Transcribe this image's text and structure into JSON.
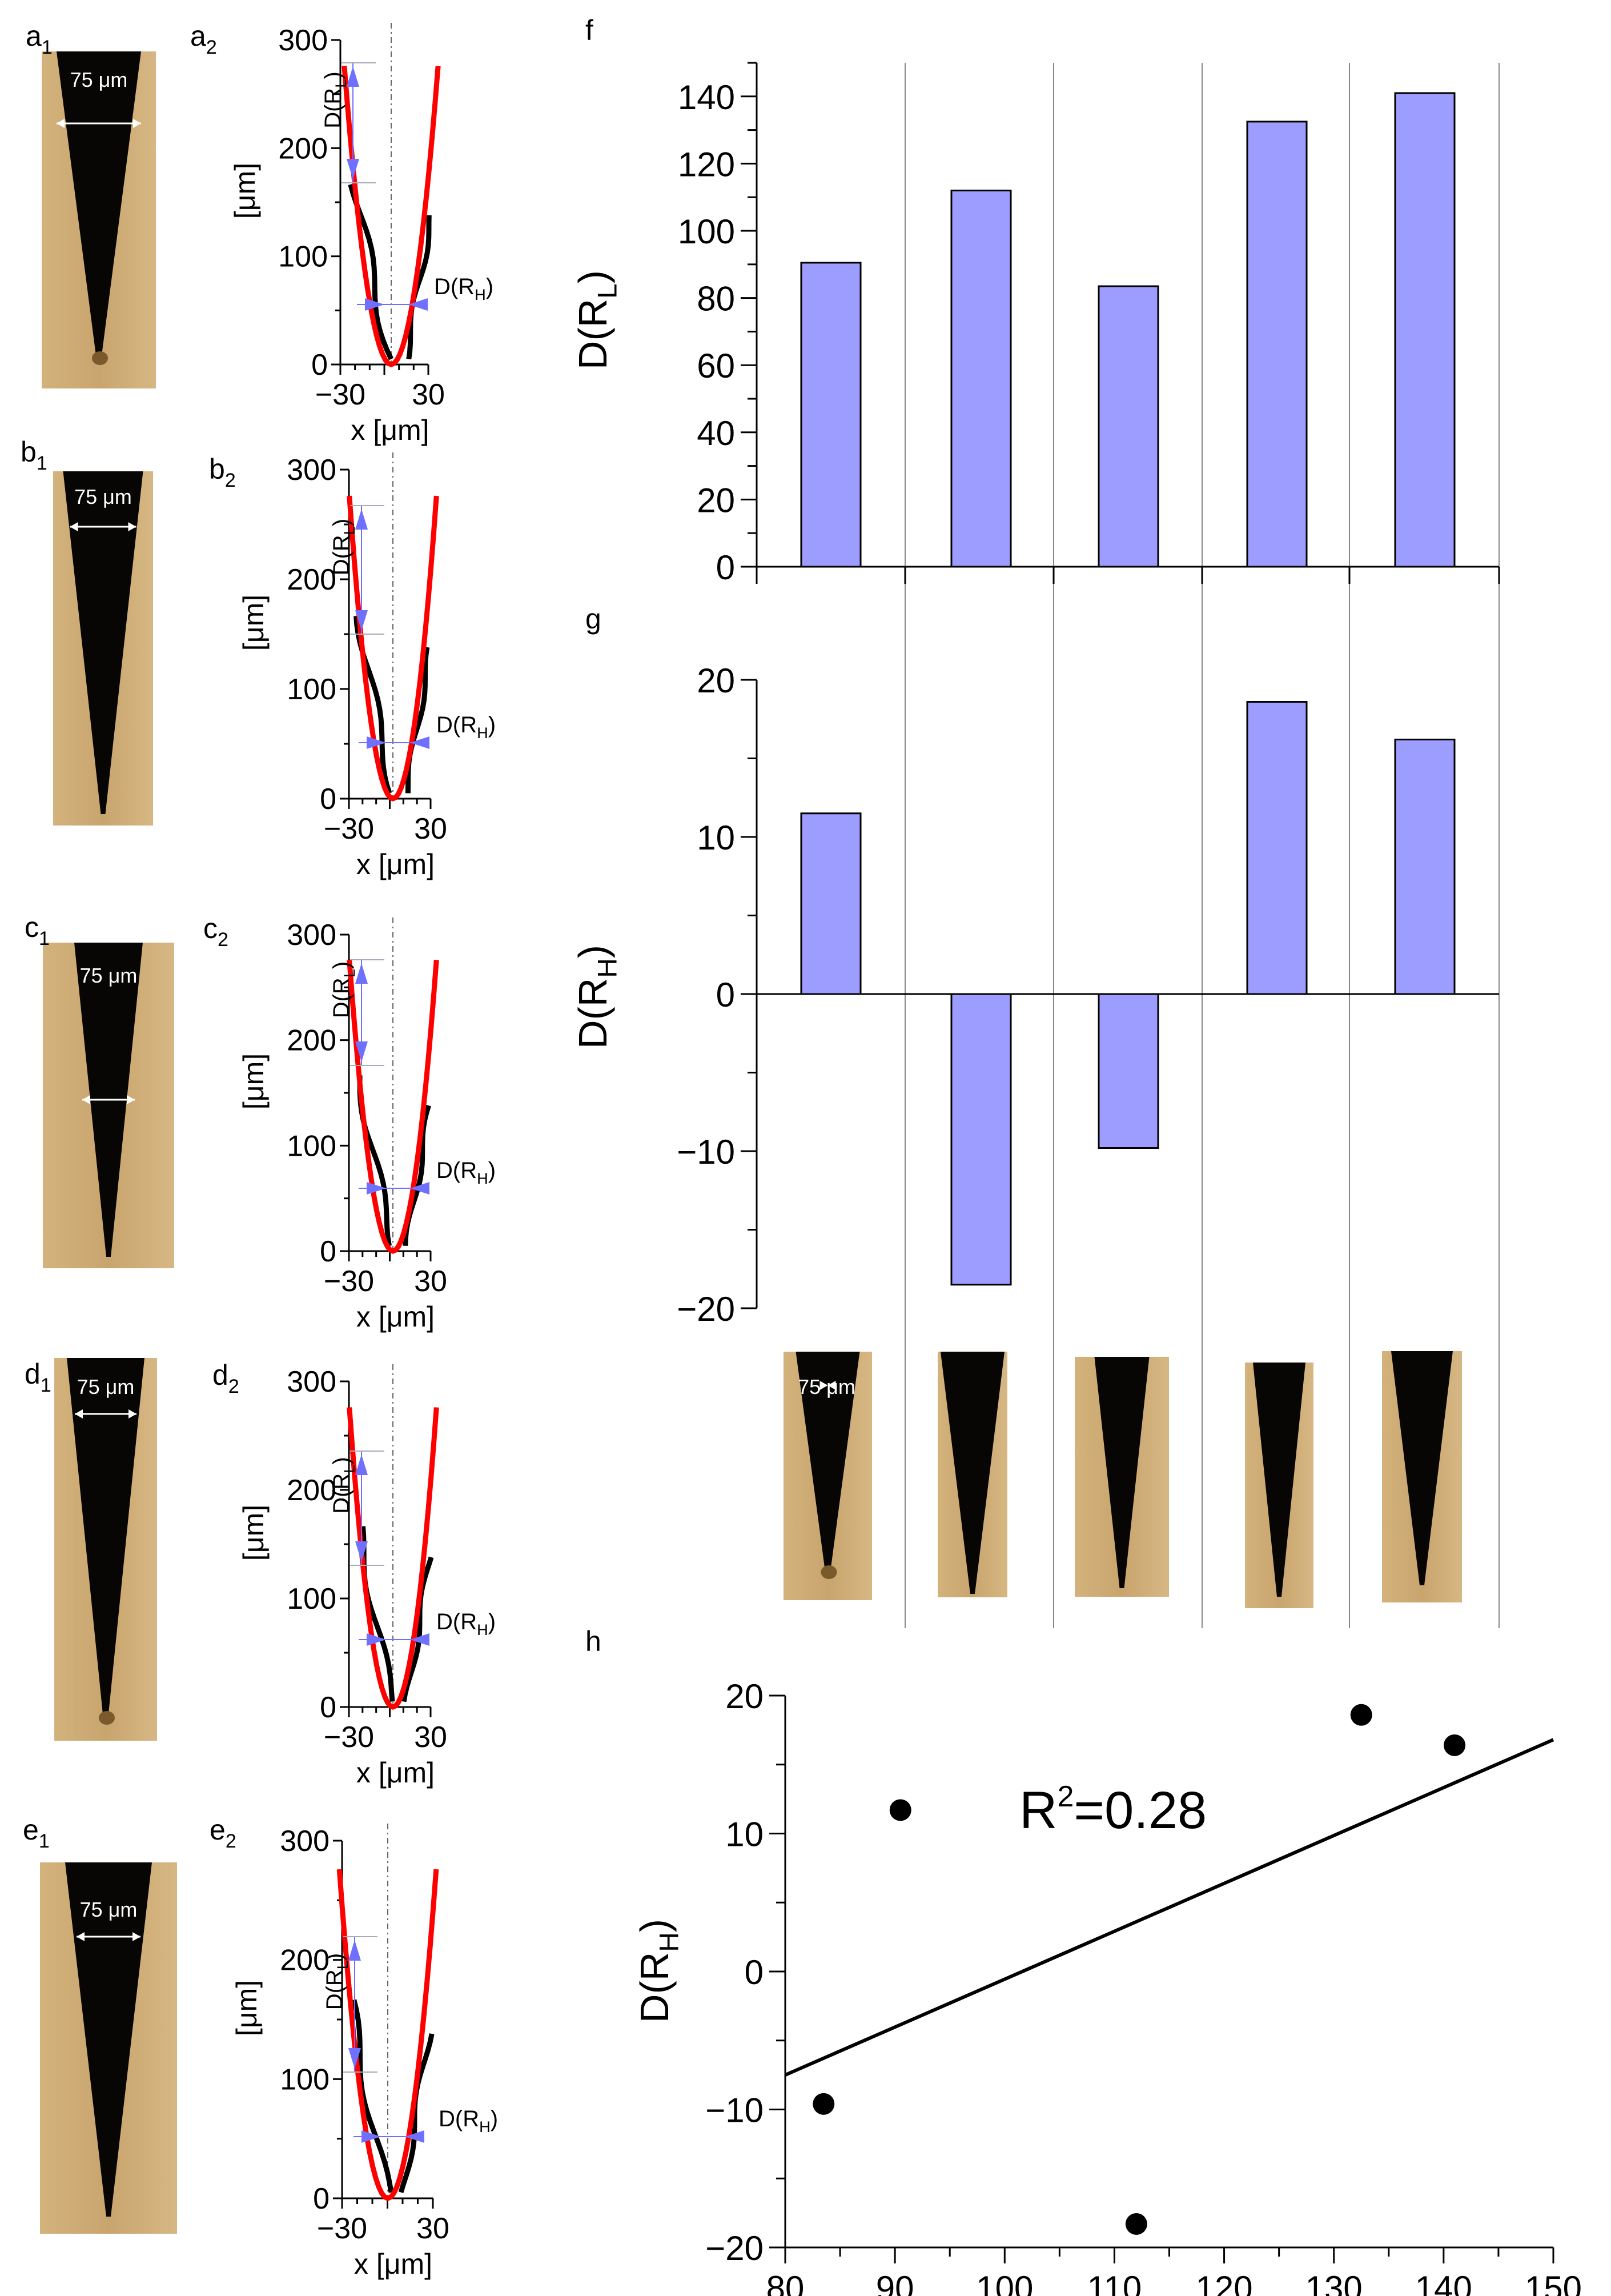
{
  "figure": {
    "panel_labels": {
      "a1": {
        "letter": "a",
        "sub": "1"
      },
      "a2": {
        "letter": "a",
        "sub": "2"
      },
      "b1": {
        "letter": "b",
        "sub": "1"
      },
      "b2": {
        "letter": "b",
        "sub": "2"
      },
      "c1": {
        "letter": "c",
        "sub": "1"
      },
      "c2": {
        "letter": "c",
        "sub": "2"
      },
      "d1": {
        "letter": "d",
        "sub": "1"
      },
      "d2": {
        "letter": "d",
        "sub": "2"
      },
      "e1": {
        "letter": "e",
        "sub": "1"
      },
      "e2": {
        "letter": "e",
        "sub": "2"
      },
      "f": "f",
      "g": "g",
      "h": "h"
    },
    "scale_bar_label": "75 μm",
    "colors": {
      "bar_fill": "#9d9dff",
      "fit_curve": "#ff0000",
      "profile": "#000000",
      "arrow": "#7070ff",
      "photo_bg": "#c9a56e",
      "photo_tip": "#070605"
    }
  },
  "chart_data": [
    {
      "id": "profiles",
      "type": "line",
      "panels": [
        "a2",
        "b2",
        "c2",
        "d2",
        "e2"
      ],
      "series": [
        {
          "name": "tip profile"
        },
        {
          "name": "parabolic fit"
        }
      ],
      "xlabel": "x [μm]",
      "ylabel": "[μm]",
      "xlim": [
        -30,
        30
      ],
      "ylim": [
        0,
        300
      ],
      "xticks": [
        "−30",
        "0",
        "30"
      ],
      "yticks": [
        "0",
        "100",
        "200",
        "300"
      ],
      "annotation_long": {
        "main": "D(R",
        "sub": "L",
        "close": ")"
      },
      "annotation_short": {
        "main": "D(R",
        "sub": "H",
        "close": ")"
      }
    },
    {
      "id": "f",
      "type": "bar",
      "categories": [
        "a",
        "b",
        "c",
        "d",
        "e"
      ],
      "values": [
        90.5,
        112,
        83.5,
        132.5,
        141
      ],
      "ylabel": {
        "main": "D(R",
        "sub": "L",
        "close": ")"
      },
      "ylim": [
        0,
        150
      ],
      "yticks": [
        "0",
        "20",
        "40",
        "60",
        "80",
        "100",
        "120",
        "140"
      ]
    },
    {
      "id": "g",
      "type": "bar",
      "categories": [
        "a",
        "b",
        "c",
        "d",
        "e"
      ],
      "values": [
        11.5,
        -18.5,
        -9.8,
        18.6,
        16.2
      ],
      "ylabel": {
        "main": "D(R",
        "sub": "H",
        "close": ")"
      },
      "ylim": [
        -20,
        20
      ],
      "yticks": [
        "−20",
        "−10",
        "0",
        "10",
        "20"
      ]
    },
    {
      "id": "h",
      "type": "scatter",
      "x": [
        90.5,
        112,
        83.5,
        132.5,
        141
      ],
      "y": [
        11.7,
        -18.3,
        -9.6,
        18.6,
        16.4
      ],
      "fit_line": {
        "x": [
          80,
          150
        ],
        "y": [
          -7.5,
          16.8
        ]
      },
      "annotation": {
        "main": "R",
        "sup": "2",
        "rest": "=0.28"
      },
      "xlabel": {
        "main": "D(R",
        "sub": "L",
        "close": ")"
      },
      "ylabel": {
        "main": "D(R",
        "sub": "H",
        "close": ")"
      },
      "xlim": [
        80,
        150
      ],
      "ylim": [
        -20,
        20
      ],
      "xticks": [
        "80",
        "90",
        "100",
        "110",
        "120",
        "130",
        "140",
        "150"
      ],
      "yticks": [
        "−20",
        "−10",
        "0",
        "10",
        "20"
      ]
    }
  ]
}
